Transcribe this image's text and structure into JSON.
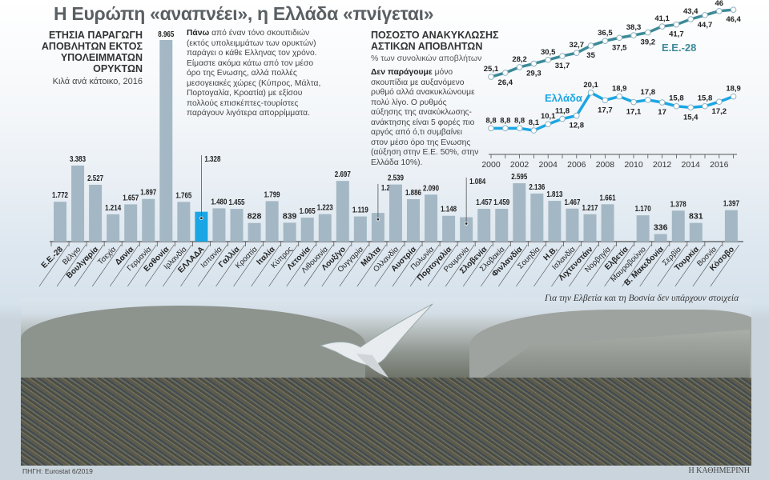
{
  "header": {
    "title": "Η Ευρώπη «αναπνέει», η Ελλάδα «πνίγεται»"
  },
  "left_panel": {
    "title_lines": [
      "ΕΤΗΣΙΑ ΠΑΡΑΓΩΓΗ",
      "ΑΠΟΒΛΗΤΩΝ ΕΚΤΟΣ",
      "ΥΠΟΛΕΙΜΜΑΤΩΝ",
      "ΟΡΥΚΤΩΝ"
    ],
    "subtitle": "Κιλά ανά κάτοικο, 2016",
    "paragraph_bold": "Πάνω",
    "paragraph": " από έναν τόνο σκουπιδιών (εκτός υπολειμμάτων των ορυκτών) παράγει ο κάθε Ελληνας τον χρόνο. Είμαστε ακόμα κάτω από τον μέσο όρο της Ενωσης, αλλά πολλές μεσογειακές χώρες (Κύπρος, Μάλτα, Πορτογαλία, Κροατία) με εξίσου πολλούς επισκέπτες-τουρίστες παράγουν λιγότερα απορρίμματα."
  },
  "right_panel": {
    "title_lines": [
      "ΠΟΣΟΣΤΟ ΑΝΑΚΥΚΛΩΣΗΣ",
      "ΑΣΤΙΚΩΝ ΑΠΟΒΛΗΤΩΝ"
    ],
    "subtitle": "% των συνολικών αποβλήτων",
    "paragraph_bold": "Δεν παράγουμε",
    "paragraph": " μόνο σκουπίδια με αυξανόμενο ρυθμό αλλά ανακυκλώνουμε πολύ λίγο. Ο ρυθμός αύξησης της ανακύκλωσης-ανάκτησης είναι 5 φορές πιο αργός από ό,τι συμβαίνει στον μέσο όρο της Ενωσης (αύξηση στην Ε.Ε. 50%, στην Ελλάδα 10%)."
  },
  "note": "Για την Ελβετία και τη Βοσνία δεν υπάρχουν στοιχεία",
  "footer": {
    "source": "ΠΗΓΗ: Eurostat 6/2019",
    "brand": "Η ΚΑΘΗΜΕΡΙΝΗ"
  },
  "colors": {
    "bar": "#a3b8c4",
    "highlight": "#1aa6e4",
    "eu_line": "#3d8a97",
    "greece_line": "#1aa6e4"
  },
  "chart_data": [
    {
      "type": "bar",
      "title": "ΕΤΗΣΙΑ ΠΑΡΑΓΩΓΗ ΑΠΟΒΛΗΤΩΝ ΕΚΤΟΣ ΥΠΟΛΕΙΜΜΑΤΩΝ ΟΡΥΚΤΩΝ",
      "ylabel": "Κιλά ανά κάτοικο, 2016",
      "highlight": "ΕΛΛΑΔΑ",
      "categories": [
        "Ε.Ε.-28",
        "Βέλγιο",
        "Βουλγαρία",
        "Τσεχία",
        "Δανία",
        "Γερμανία",
        "Εσθονία",
        "Ιρλανδία",
        "ΕΛΛΑΔΑ",
        "Ισπανία",
        "Γαλλία",
        "Κροατία",
        "Ιταλία",
        "Κύπρος",
        "Λετονία",
        "Λιθουανία",
        "Λουξ/γο",
        "Ουγγαρία",
        "Μάλτα",
        "Ολλανδία",
        "Αυστρία",
        "Πολωνία",
        "Πορτογαλία",
        "Ρουμανία",
        "Σλοβενία",
        "Σλοβακία",
        "Φινλανδία",
        "Σουηδία",
        "Η.Β.",
        "Ισλανδία",
        "Λιχτενστάιν",
        "Νορβηγία",
        "Ελβετία",
        "Μαυροβούνιο",
        "Β. Μακεδονία",
        "Σερβία",
        "Τουρκία",
        "Βοσνία",
        "Κόσοβο"
      ],
      "bold_categories": [
        "Ε.Ε.-28",
        "Βουλγαρία",
        "Δανία",
        "Εσθονία",
        "ΕΛΛΑΔΑ",
        "Γαλλία",
        "Ιταλία",
        "Λετονία",
        "Λουξ/γο",
        "Μάλτα",
        "Αυστρία",
        "Πορτογαλία",
        "Σλοβενία",
        "Φινλανδία",
        "Η.Β.",
        "Λιχτενστάιν",
        "Ελβετία",
        "Β. Μακεδονία",
        "Τουρκία",
        "Κόσοβο"
      ],
      "values": [
        1772,
        3383,
        2527,
        1214,
        1657,
        1897,
        8965,
        1765,
        1328,
        1480,
        1455,
        828,
        1799,
        839,
        1065,
        1223,
        2697,
        1119,
        1276,
        2539,
        1886,
        2090,
        1148,
        1084,
        1457,
        1459,
        2595,
        2136,
        1813,
        1467,
        1217,
        1661,
        null,
        1170,
        336,
        1378,
        831,
        null,
        1397
      ],
      "value_labels": [
        "1.772",
        "3.383",
        "2.527",
        "1.214",
        "1.657",
        "1.897",
        "8.965",
        "1.765",
        "1.328",
        "1.480",
        "1.455",
        "828",
        "1.799",
        "839",
        "1.065",
        "1.223",
        "2.697",
        "1.119",
        "1.276",
        "2.539",
        "1.886",
        "2.090",
        "1.148",
        "1.084",
        "1.457",
        "1.459",
        "2.595",
        "2.136",
        "1.813",
        "1.467",
        "1.217",
        "1.661",
        "",
        "1.170",
        "336",
        "1.378",
        "831",
        "",
        "1.397"
      ]
    },
    {
      "type": "line",
      "title": "ΠΟΣΟΣΤΟ ΑΝΑΚΥΚΛΩΣΗΣ ΑΣΤΙΚΩΝ ΑΠΟΒΛΗΤΩΝ",
      "ylabel": "% των συνολικών αποβλήτων",
      "x": [
        2000,
        2001,
        2002,
        2003,
        2004,
        2005,
        2006,
        2007,
        2008,
        2009,
        2010,
        2011,
        2012,
        2013,
        2014,
        2015,
        2016,
        2017
      ],
      "xticks": [
        "2000",
        "2002",
        "2004",
        "2006",
        "2008",
        "2010",
        "2012",
        "2014",
        "2016"
      ],
      "series": [
        {
          "name": "Ε.Ε.-28",
          "values": [
            25.1,
            26.4,
            28.2,
            29.3,
            30.5,
            31.7,
            32.7,
            35,
            36.5,
            37.5,
            38.3,
            39.2,
            41.1,
            41.7,
            43.4,
            44.7,
            46,
            46.4
          ],
          "labels": [
            "25,1",
            "26,4",
            "28,2",
            "29,3",
            "30,5",
            "31,7",
            "32,7",
            "35",
            "36,5",
            "37,5",
            "38,3",
            "39,2",
            "41,1",
            "41,7",
            "43,4",
            "44,7",
            "46",
            "46,4"
          ]
        },
        {
          "name": "Ελλάδα",
          "values": [
            8.8,
            8.8,
            8.8,
            8.1,
            10.1,
            11.8,
            12.8,
            20.1,
            17.7,
            18.9,
            17.1,
            17.8,
            17,
            15.8,
            15.4,
            15.8,
            17.2,
            18.9
          ],
          "labels": [
            "8,8",
            "8,8",
            "8,8",
            "8,1",
            "10,1",
            "11,8",
            "12,8",
            "20,1",
            "17,7",
            "18,9",
            "17,1",
            "17,8",
            "17",
            "15,8",
            "15,4",
            "15,8",
            "17,2",
            "18,9"
          ]
        }
      ]
    }
  ]
}
